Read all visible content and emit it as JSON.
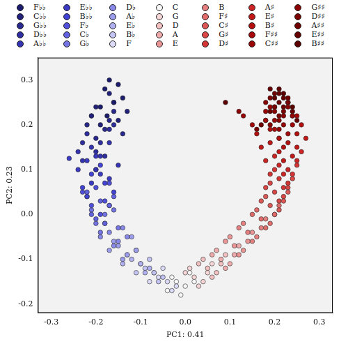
{
  "chart_data": {
    "type": "scatter",
    "x_label": "PC1: 0.41",
    "y_label": "PC2: 0.23",
    "xlim": [
      -0.33,
      0.33
    ],
    "ylim": [
      -0.22,
      0.35
    ],
    "xticks": [
      -0.3,
      -0.2,
      -0.1,
      {
        "value": 0,
        "label": "0.0"
      },
      0.1,
      0.2,
      0.3
    ],
    "yticks": [
      -0.2,
      -0.1,
      {
        "value": 0,
        "label": "0.0"
      },
      0.1,
      0.2,
      0.3
    ],
    "grid": false,
    "legend": "top",
    "series": [
      {
        "name": "F♭♭",
        "color": "#1c1c6e",
        "x": [
          -0.18,
          -0.16,
          -0.15,
          -0.19,
          -0.17,
          -0.14,
          -0.175
        ],
        "values": [
          0.28,
          0.25,
          0.29,
          0.24,
          0.3,
          0.26,
          0.22
        ]
      },
      {
        "name": "C♭♭",
        "color": "#22227e",
        "x": [
          -0.2,
          -0.17,
          -0.15,
          -0.19,
          -0.16,
          -0.21,
          -0.13
        ],
        "values": [
          0.24,
          0.27,
          0.21,
          0.2,
          0.25,
          0.22,
          0.23
        ]
      },
      {
        "name": "G♭♭",
        "color": "#28288e",
        "x": [
          -0.21,
          -0.18,
          -0.16,
          -0.2,
          -0.17,
          -0.22,
          -0.14
        ],
        "values": [
          0.22,
          0.19,
          0.23,
          0.17,
          0.21,
          0.2,
          0.18
        ]
      },
      {
        "name": "D♭♭",
        "color": "#2e2ea0",
        "x": [
          -0.22,
          -0.19,
          -0.17,
          -0.2,
          -0.23,
          -0.16,
          -0.18
        ],
        "values": [
          0.18,
          0.16,
          0.19,
          0.14,
          0.16,
          0.2,
          0.13
        ]
      },
      {
        "name": "A♭♭",
        "color": "#3434b2",
        "x": [
          -0.21,
          -0.19,
          -0.23,
          -0.17,
          -0.2,
          -0.24,
          -0.15
        ],
        "values": [
          0.15,
          0.13,
          0.12,
          0.16,
          0.1,
          0.14,
          0.11
        ]
      },
      {
        "name": "E♭♭",
        "color": "#3a3ac4",
        "x": [
          -0.22,
          -0.19,
          -0.2,
          -0.24,
          -0.17,
          -0.21,
          -0.26
        ],
        "values": [
          0.12,
          0.09,
          0.13,
          0.1,
          0.08,
          0.07,
          0.125
        ]
      },
      {
        "name": "B♭♭",
        "color": "#4242d4",
        "x": [
          -0.21,
          -0.18,
          -0.23,
          -0.2,
          -0.16,
          -0.22,
          -0.19
        ],
        "values": [
          0.09,
          0.07,
          0.06,
          0.1,
          0.05,
          0.04,
          0.11
        ]
      },
      {
        "name": "F♭",
        "color": "#5050dc",
        "x": [
          -0.2,
          -0.22,
          -0.18,
          -0.21,
          -0.17,
          -0.23,
          -0.19
        ],
        "values": [
          0.06,
          0.04,
          0.03,
          0.02,
          0.07,
          0.05,
          0.0
        ]
      },
      {
        "name": "C♭",
        "color": "#6262e0",
        "x": [
          -0.19,
          -0.21,
          -0.17,
          -0.2,
          -0.16,
          -0.22,
          -0.18
        ],
        "values": [
          0.03,
          0.0,
          0.02,
          -0.01,
          0.04,
          0.05,
          -0.02
        ]
      },
      {
        "name": "G♭",
        "color": "#7474e4",
        "x": [
          -0.18,
          -0.2,
          -0.16,
          -0.19,
          -0.15,
          -0.17,
          -0.21
        ],
        "values": [
          0.0,
          -0.02,
          0.01,
          -0.04,
          -0.03,
          0.02,
          0.01
        ]
      },
      {
        "name": "D♭",
        "color": "#8888e8",
        "x": [
          -0.17,
          -0.15,
          -0.18,
          -0.13,
          -0.16,
          -0.19,
          -0.14
        ],
        "values": [
          -0.04,
          -0.06,
          -0.02,
          -0.05,
          -0.07,
          -0.05,
          -0.03
        ]
      },
      {
        "name": "A♭",
        "color": "#9c9cec",
        "x": [
          -0.15,
          -0.13,
          -0.16,
          -0.11,
          -0.14,
          -0.12,
          -0.17
        ],
        "values": [
          -0.07,
          -0.09,
          -0.06,
          -0.08,
          -0.1,
          -0.05,
          -0.08
        ]
      },
      {
        "name": "E♭",
        "color": "#b0b0f0",
        "x": [
          -0.12,
          -0.1,
          -0.13,
          -0.08,
          -0.11,
          -0.09,
          -0.14
        ],
        "values": [
          -0.1,
          -0.11,
          -0.09,
          -0.12,
          -0.08,
          -0.13,
          -0.11
        ]
      },
      {
        "name": "B♭",
        "color": "#c4c4f4",
        "x": [
          -0.09,
          -0.07,
          -0.1,
          -0.05,
          -0.08,
          -0.06,
          -0.11
        ],
        "values": [
          -0.12,
          -0.13,
          -0.11,
          -0.14,
          -0.1,
          -0.15,
          -0.13
        ]
      },
      {
        "name": "F",
        "color": "#dcdcf8",
        "x": [
          -0.06,
          -0.04,
          -0.07,
          -0.02,
          -0.05,
          -0.03,
          -0.08
        ],
        "values": [
          -0.14,
          -0.15,
          -0.13,
          -0.16,
          -0.12,
          -0.17,
          -0.15
        ]
      },
      {
        "name": "C",
        "color": "#f8f8f8",
        "x": [
          -0.02,
          0.0,
          -0.03,
          0.02,
          -0.01,
          0.01,
          -0.04
        ],
        "values": [
          -0.15,
          -0.16,
          -0.14,
          -0.15,
          -0.18,
          -0.13,
          -0.17
        ]
      },
      {
        "name": "G",
        "color": "#f6d6d6",
        "x": [
          0.02,
          0.04,
          0.01,
          0.05,
          0.03,
          0.06,
          0.0
        ],
        "values": [
          -0.14,
          -0.15,
          -0.12,
          -0.13,
          -0.16,
          -0.11,
          -0.13
        ]
      },
      {
        "name": "D",
        "color": "#f2c0c0",
        "x": [
          0.05,
          0.07,
          0.04,
          0.08,
          0.06,
          0.09,
          0.03
        ],
        "values": [
          -0.12,
          -0.13,
          -0.1,
          -0.11,
          -0.14,
          -0.09,
          -0.11
        ]
      },
      {
        "name": "A",
        "color": "#eeaaaa",
        "x": [
          0.08,
          0.1,
          0.07,
          0.11,
          0.09,
          0.12,
          0.06
        ],
        "values": [
          -0.1,
          -0.11,
          -0.08,
          -0.09,
          -0.12,
          -0.07,
          -0.09
        ]
      },
      {
        "name": "E",
        "color": "#ea9494",
        "x": [
          0.11,
          0.13,
          0.1,
          0.14,
          0.12,
          0.15,
          0.09
        ],
        "values": [
          -0.07,
          -0.08,
          -0.05,
          -0.06,
          -0.09,
          -0.04,
          -0.06
        ]
      },
      {
        "name": "B",
        "color": "#e68080",
        "x": [
          0.14,
          0.16,
          0.13,
          0.17,
          0.15,
          0.18,
          0.12
        ],
        "values": [
          -0.04,
          -0.05,
          -0.02,
          -0.03,
          -0.06,
          -0.01,
          -0.03
        ]
      },
      {
        "name": "F♯",
        "color": "#e26c6c",
        "x": [
          0.17,
          0.19,
          0.16,
          0.2,
          0.18,
          0.21,
          0.15
        ],
        "values": [
          -0.01,
          -0.02,
          0.01,
          0.0,
          -0.03,
          0.02,
          0.0
        ]
      },
      {
        "name": "C♯",
        "color": "#de5858",
        "x": [
          0.19,
          0.21,
          0.18,
          0.22,
          0.2,
          0.23,
          0.17
        ],
        "values": [
          0.02,
          0.01,
          0.04,
          0.03,
          0.0,
          0.05,
          0.03
        ]
      },
      {
        "name": "G♯",
        "color": "#da4646",
        "x": [
          0.2,
          0.22,
          0.19,
          0.23,
          0.21,
          0.24,
          0.18
        ],
        "values": [
          0.05,
          0.04,
          0.07,
          0.06,
          0.03,
          0.08,
          0.06
        ]
      },
      {
        "name": "D♯",
        "color": "#d43434",
        "x": [
          0.21,
          0.23,
          0.2,
          0.24,
          0.22,
          0.25,
          0.19
        ],
        "values": [
          0.08,
          0.07,
          0.1,
          0.09,
          0.06,
          0.11,
          0.09
        ]
      },
      {
        "name": "A♯",
        "color": "#cc2424",
        "x": [
          0.21,
          0.23,
          0.2,
          0.25,
          0.22,
          0.26,
          0.18
        ],
        "values": [
          0.11,
          0.1,
          0.13,
          0.12,
          0.09,
          0.14,
          0.12
        ]
      },
      {
        "name": "E♯",
        "color": "#c21818",
        "x": [
          0.21,
          0.24,
          0.19,
          0.25,
          0.22,
          0.27,
          0.17
        ],
        "values": [
          0.14,
          0.13,
          0.16,
          0.15,
          0.12,
          0.17,
          0.15
        ]
      },
      {
        "name": "B♯",
        "color": "#b41010",
        "x": [
          0.21,
          0.23,
          0.19,
          0.25,
          0.22,
          0.26,
          0.16
        ],
        "values": [
          0.17,
          0.16,
          0.19,
          0.18,
          0.15,
          0.2,
          0.18
        ]
      },
      {
        "name": "F♯♯",
        "color": "#a60a0a",
        "x": [
          0.2,
          0.23,
          0.18,
          0.24,
          0.21,
          0.25,
          0.15
        ],
        "values": [
          0.19,
          0.18,
          0.21,
          0.2,
          0.17,
          0.22,
          0.2
        ]
      },
      {
        "name": "C♯♯",
        "color": "#980606",
        "x": [
          0.2,
          0.22,
          0.18,
          0.24,
          0.21,
          0.19,
          0.13
        ],
        "values": [
          0.21,
          0.2,
          0.23,
          0.22,
          0.19,
          0.24,
          0.22
        ]
      },
      {
        "name": "G♯♯",
        "color": "#8a0404",
        "x": [
          0.2,
          0.22,
          0.18,
          0.23,
          0.21,
          0.19,
          0.12
        ],
        "values": [
          0.23,
          0.22,
          0.25,
          0.24,
          0.21,
          0.2,
          0.23
        ]
      },
      {
        "name": "D♯♯",
        "color": "#7c0202",
        "x": [
          0.2,
          0.22,
          0.19,
          0.23,
          0.21,
          0.18,
          0.16
        ],
        "values": [
          0.24,
          0.23,
          0.26,
          0.25,
          0.22,
          0.21,
          0.19
        ]
      },
      {
        "name": "A♯♯",
        "color": "#700000",
        "x": [
          0.21,
          0.22,
          0.2,
          0.23,
          0.19,
          0.24,
          0.17
        ],
        "values": [
          0.25,
          0.24,
          0.27,
          0.26,
          0.23,
          0.22,
          0.2
        ]
      },
      {
        "name": "E♯♯",
        "color": "#660000",
        "x": [
          0.22,
          0.21,
          0.2,
          0.23,
          0.24,
          0.19,
          0.25
        ],
        "values": [
          0.26,
          0.27,
          0.24,
          0.25,
          0.23,
          0.28,
          0.21
        ]
      },
      {
        "name": "B♯♯",
        "color": "#5c0000",
        "x": [
          0.22,
          0.21,
          0.23,
          0.2,
          0.24,
          0.09
        ],
        "values": [
          0.27,
          0.28,
          0.25,
          0.26,
          0.24,
          0.25
        ]
      }
    ]
  }
}
